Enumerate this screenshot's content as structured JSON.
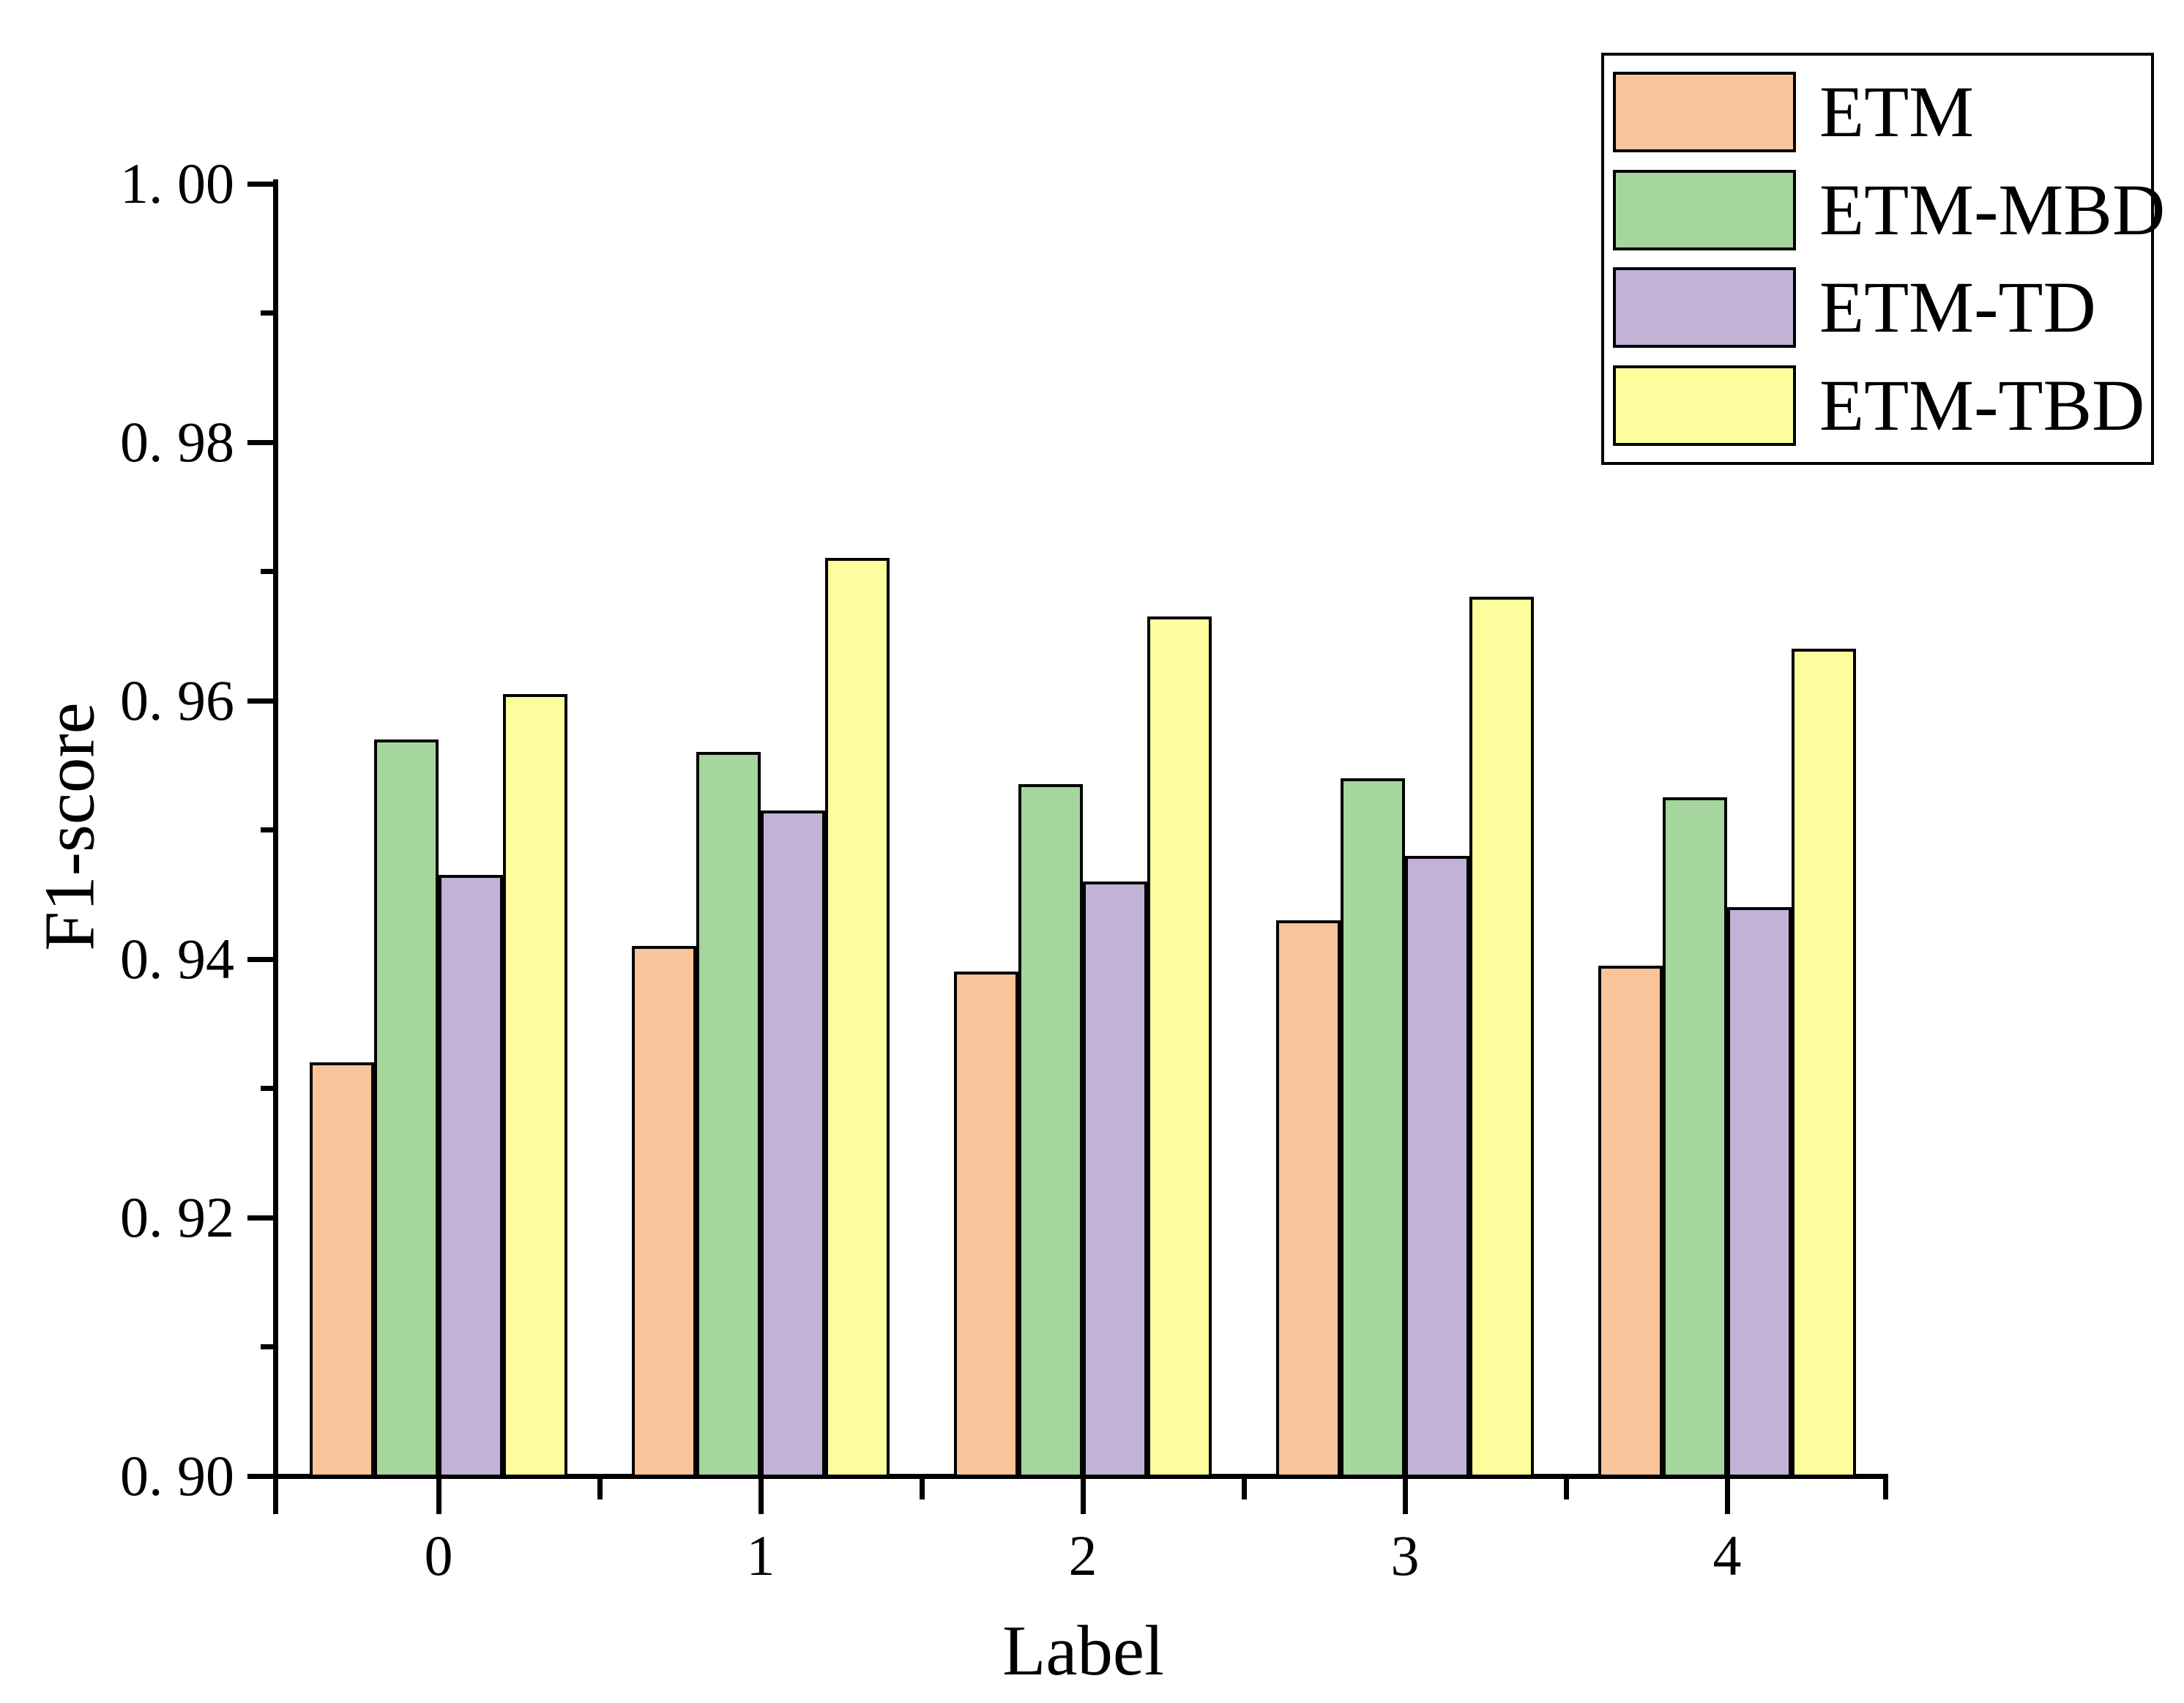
{
  "chart_data": {
    "type": "bar",
    "title": "",
    "xlabel": "Label",
    "ylabel": "F1-score",
    "categories": [
      "0",
      "1",
      "2",
      "3",
      "4"
    ],
    "series": [
      {
        "name": "ETM",
        "color": "#F9C499",
        "values": [
          0.932,
          0.941,
          0.939,
          0.943,
          0.9395
        ]
      },
      {
        "name": "ETM-MBD",
        "color": "#A5D69E",
        "values": [
          0.957,
          0.956,
          0.9535,
          0.954,
          0.9525
        ]
      },
      {
        "name": "ETM-TD",
        "color": "#C1B2D6",
        "values": [
          0.9465,
          0.9515,
          0.946,
          0.948,
          0.944
        ]
      },
      {
        "name": "ETM-TBD",
        "color": "#FDFD9E",
        "values": [
          0.9605,
          0.971,
          0.9665,
          0.968,
          0.964
        ]
      }
    ],
    "ylim": [
      0.9,
      1.0
    ],
    "y_major_ticks": {
      "values": [
        1.0,
        0.98,
        0.96,
        0.94,
        0.92,
        0.9
      ],
      "labels": [
        "1. 00",
        "0. 98",
        "0. 96",
        "0. 94",
        "0. 92",
        "0. 90"
      ]
    },
    "y_minor_tick_values": [
      0.91,
      0.93,
      0.95,
      0.97,
      0.99
    ],
    "grid": false,
    "legend_position": "top-right",
    "bar_border_color": "#000000",
    "axis_color": "#000000"
  }
}
